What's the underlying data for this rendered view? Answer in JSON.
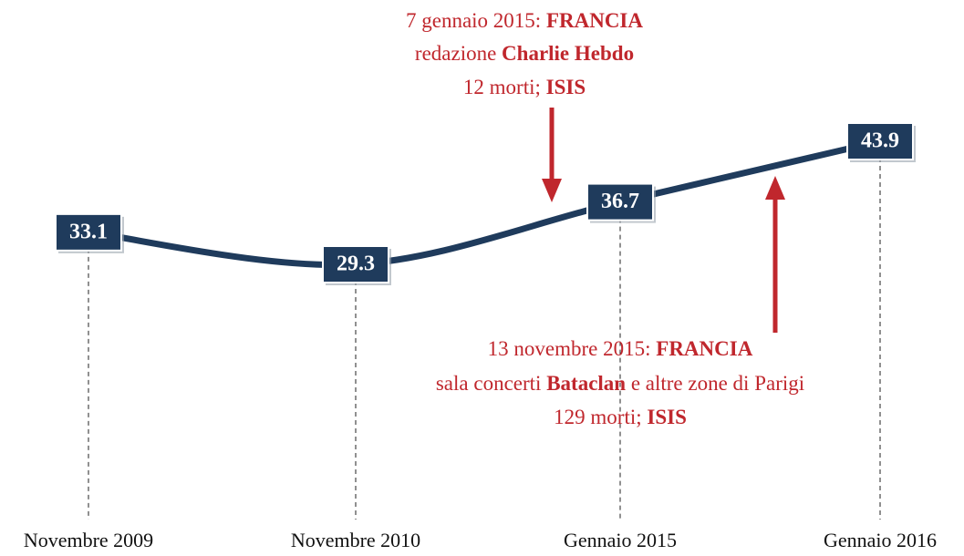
{
  "chart_data": {
    "type": "line",
    "categories": [
      "Novembre 2009",
      "Novembre 2010",
      "Gennaio 2015",
      "Gennaio 2016"
    ],
    "values": [
      33.1,
      29.3,
      36.7,
      43.9
    ],
    "color": "#1f3b5c",
    "annotations": [
      {
        "color": "#c0272d",
        "lines": [
          [
            {
              "text": "7 gennaio 2015: ",
              "bold": false
            },
            {
              "text": "FRANCIA",
              "bold": true
            }
          ],
          [
            {
              "text": "redazione ",
              "bold": false
            },
            {
              "text": "Charlie Hebdo",
              "bold": true
            }
          ],
          [
            {
              "text": "12 morti; ",
              "bold": false
            },
            {
              "text": "ISIS",
              "bold": true
            }
          ]
        ]
      },
      {
        "color": "#c0272d",
        "lines": [
          [
            {
              "text": "13 novembre 2015: ",
              "bold": false
            },
            {
              "text": "FRANCIA",
              "bold": true
            }
          ],
          [
            {
              "text": "sala concerti ",
              "bold": false
            },
            {
              "text": "Bataclan",
              "bold": true
            },
            {
              "text": " e altre zone di Parigi",
              "bold": false
            }
          ],
          [
            {
              "text": "129 morti; ",
              "bold": false
            },
            {
              "text": "ISIS",
              "bold": true
            }
          ]
        ]
      }
    ]
  }
}
